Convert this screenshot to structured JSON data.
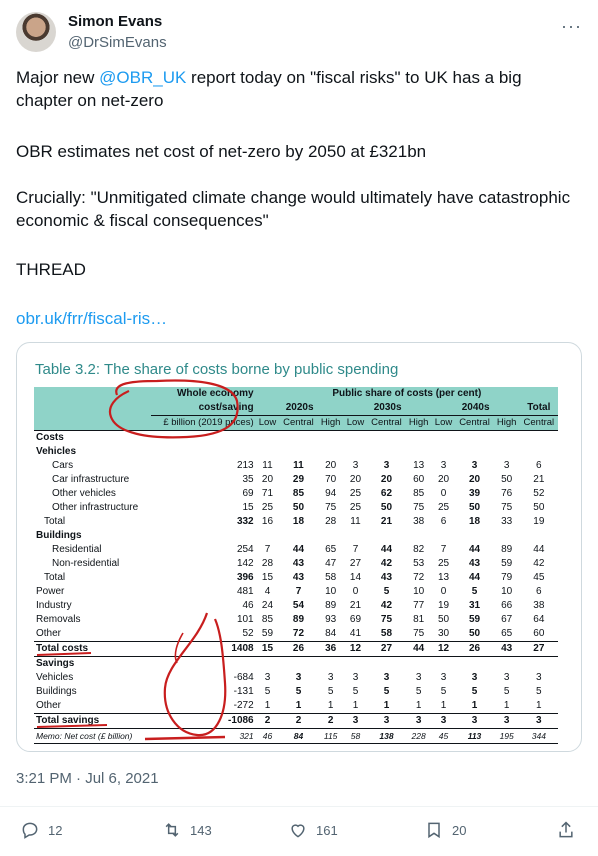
{
  "tweet": {
    "author_name": "Simon Evans",
    "author_handle": "@DrSimEvans",
    "more_label": "···",
    "text_p1_pre": "Major new ",
    "mention": "@OBR_UK",
    "text_p1_post": " report today on \"fiscal risks\" to UK has a big chapter on net-zero",
    "text_p2": "OBR estimates net cost of net-zero by 2050 at £321bn",
    "text_p3": "Crucially: \"Unmitigated climate change would ultimately have catastrophic economic & fiscal consequences\"",
    "text_p4": "THREAD",
    "link": "obr.uk/frr/fiscal-ris…",
    "timestamp": "3:21 PM · Jul 6, 2021"
  },
  "actions": {
    "reply_count": "12",
    "retweet_count": "143",
    "like_count": "161",
    "bookmark_count": "20"
  },
  "table": {
    "title_num": "Table 3.2:",
    "title_text": " The share of costs borne by public spending",
    "h_whole1": "Whole economy",
    "h_whole2": "cost/saving",
    "h_whole3": "£ billion (2019 prices)",
    "h_public": "Public share of costs (per cent)",
    "h_2020s": "2020s",
    "h_2030s": "2030s",
    "h_2040s": "2040s",
    "h_total": "Total",
    "h_low": "Low",
    "h_central": "Central",
    "h_high": "High",
    "rows": [
      {
        "label": "Costs",
        "vals": [
          "",
          "",
          "",
          "",
          "",
          "",
          "",
          "",
          "",
          "",
          ""
        ]
      },
      {
        "label": "Vehicles",
        "vals": [
          "",
          "",
          "",
          "",
          "",
          "",
          "",
          "",
          "",
          "",
          ""
        ]
      },
      {
        "label": "Cars",
        "vals": [
          "213",
          "11",
          "11",
          "20",
          "3",
          "3",
          "13",
          "3",
          "3",
          "3",
          "6"
        ]
      },
      {
        "label": "Car infrastructure",
        "vals": [
          "35",
          "20",
          "29",
          "70",
          "20",
          "20",
          "60",
          "20",
          "20",
          "50",
          "21"
        ]
      },
      {
        "label": "Other vehicles",
        "vals": [
          "69",
          "71",
          "85",
          "94",
          "25",
          "62",
          "85",
          "0",
          "39",
          "76",
          "52"
        ]
      },
      {
        "label": "Other infrastructure",
        "vals": [
          "15",
          "25",
          "50",
          "75",
          "25",
          "50",
          "75",
          "25",
          "50",
          "75",
          "50"
        ]
      },
      {
        "label": "Total",
        "vals": [
          "332",
          "16",
          "18",
          "28",
          "11",
          "21",
          "38",
          "6",
          "18",
          "33",
          "19"
        ]
      },
      {
        "label": "Buildings",
        "vals": [
          "",
          "",
          "",
          "",
          "",
          "",
          "",
          "",
          "",
          "",
          ""
        ]
      },
      {
        "label": "Residential",
        "vals": [
          "254",
          "7",
          "44",
          "65",
          "7",
          "44",
          "82",
          "7",
          "44",
          "89",
          "44"
        ]
      },
      {
        "label": "Non-residential",
        "vals": [
          "142",
          "28",
          "43",
          "47",
          "27",
          "42",
          "53",
          "25",
          "43",
          "59",
          "42"
        ]
      },
      {
        "label": "Total",
        "vals": [
          "396",
          "15",
          "43",
          "58",
          "14",
          "43",
          "72",
          "13",
          "44",
          "79",
          "45"
        ]
      },
      {
        "label": "Power",
        "vals": [
          "481",
          "4",
          "7",
          "10",
          "0",
          "5",
          "10",
          "0",
          "5",
          "10",
          "6"
        ]
      },
      {
        "label": "Industry",
        "vals": [
          "46",
          "24",
          "54",
          "89",
          "21",
          "42",
          "77",
          "19",
          "31",
          "66",
          "38"
        ]
      },
      {
        "label": "Removals",
        "vals": [
          "101",
          "85",
          "89",
          "93",
          "69",
          "75",
          "81",
          "50",
          "59",
          "67",
          "64"
        ]
      },
      {
        "label": "Other",
        "vals": [
          "52",
          "59",
          "72",
          "84",
          "41",
          "58",
          "75",
          "30",
          "50",
          "65",
          "60"
        ]
      },
      {
        "label": "Total costs",
        "vals": [
          "1408",
          "15",
          "26",
          "36",
          "12",
          "27",
          "44",
          "12",
          "26",
          "43",
          "27"
        ]
      },
      {
        "label": "Savings",
        "vals": [
          "",
          "",
          "",
          "",
          "",
          "",
          "",
          "",
          "",
          "",
          ""
        ]
      },
      {
        "label": "Vehicles",
        "vals": [
          "-684",
          "3",
          "3",
          "3",
          "3",
          "3",
          "3",
          "3",
          "3",
          "3",
          "3"
        ]
      },
      {
        "label": "Buildings",
        "vals": [
          "-131",
          "5",
          "5",
          "5",
          "5",
          "5",
          "5",
          "5",
          "5",
          "5",
          "5"
        ]
      },
      {
        "label": "Other",
        "vals": [
          "-272",
          "1",
          "1",
          "1",
          "1",
          "1",
          "1",
          "1",
          "1",
          "1",
          "1"
        ]
      },
      {
        "label": "Total savings",
        "vals": [
          "-1086",
          "2",
          "2",
          "2",
          "3",
          "3",
          "3",
          "3",
          "3",
          "3",
          "3"
        ]
      },
      {
        "label": "Memo: Net cost (£ billion)",
        "vals": [
          "321",
          "46",
          "84",
          "115",
          "58",
          "138",
          "228",
          "45",
          "113",
          "195",
          "344"
        ]
      }
    ]
  }
}
